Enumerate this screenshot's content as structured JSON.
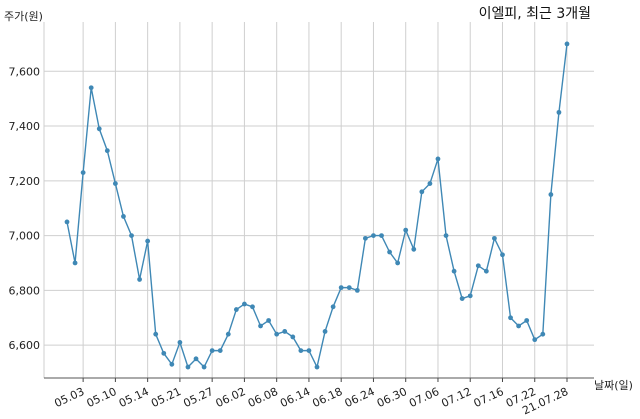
{
  "chart_data": {
    "type": "line",
    "title": "이엘피, 최근 3개월",
    "ylabel": "주가(원)",
    "xlabel": "날짜(일)",
    "ylim": [
      6480,
      7780
    ],
    "yticks": [
      6600,
      6800,
      7000,
      7200,
      7400,
      7600
    ],
    "ytick_labels": [
      "6,600",
      "6,800",
      "7,000",
      "7,200",
      "7,400",
      "7,600"
    ],
    "xtick_labels": [
      "05.03",
      "05.10",
      "05.14",
      "05.21",
      "05.27",
      "06.02",
      "06.08",
      "06.14",
      "06.18",
      "06.24",
      "06.30",
      "07.06",
      "07.12",
      "07.16",
      "07.22",
      "21.07.28"
    ],
    "xtick_index": [
      2,
      6,
      10,
      14,
      18,
      22,
      26,
      30,
      34,
      38,
      42,
      46,
      50,
      54,
      58,
      62
    ],
    "grid": true,
    "line_color": "#3f88b5",
    "series": [
      {
        "values": [
          7050,
          6900,
          7230,
          7540,
          7390,
          7310,
          7190,
          7070,
          7000,
          6840,
          6980,
          6640,
          6570,
          6530,
          6610,
          6520,
          6550,
          6520,
          6580,
          6580,
          6640,
          6730,
          6750,
          6740,
          6670,
          6690,
          6640,
          6650,
          6630,
          6580,
          6580,
          6520,
          6650,
          6740,
          6810,
          6810,
          6800,
          6990,
          7000,
          7000,
          6940,
          6900,
          7020,
          6950,
          7160,
          7190,
          7280,
          7000,
          6870,
          6770,
          6780,
          6890,
          6870,
          6990,
          6930,
          6700,
          6670,
          6690,
          6620,
          6640,
          7150,
          7450,
          7700
        ]
      }
    ]
  }
}
